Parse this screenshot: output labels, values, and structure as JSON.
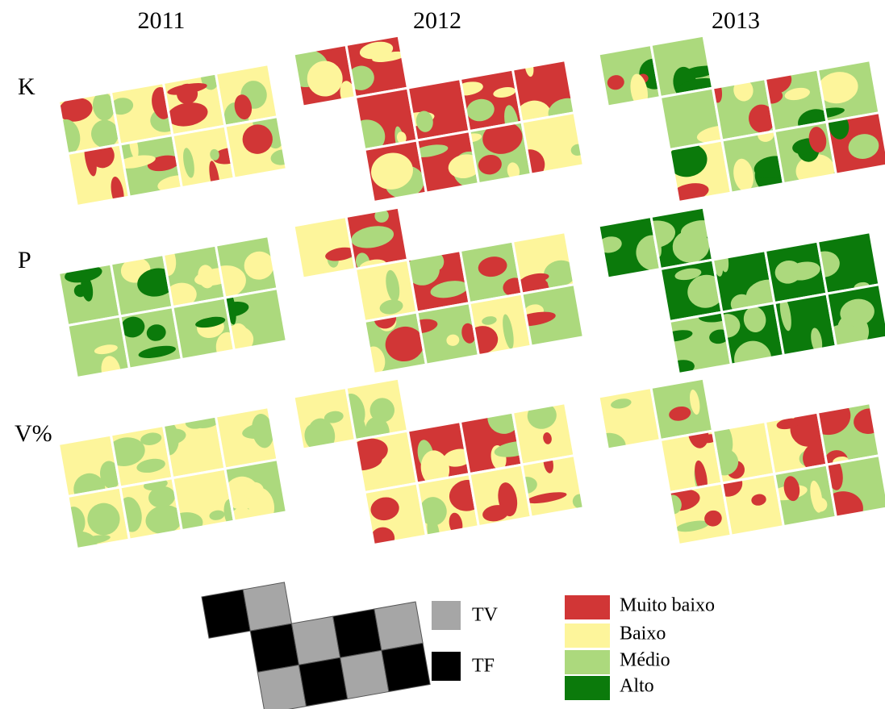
{
  "columns": [
    "2011",
    "2012",
    "2013"
  ],
  "rows": [
    "K",
    "P",
    "V%"
  ],
  "treatments": [
    {
      "label": "TV",
      "color": "#a6a6a6"
    },
    {
      "label": "TF",
      "color": "#000000"
    }
  ],
  "classes": [
    {
      "label": "Muito baixo",
      "color": "#d13636"
    },
    {
      "label": "Baixo",
      "color": "#fdf59b"
    },
    {
      "label": "Médio",
      "color": "#acd97d"
    },
    {
      "label": "Alto",
      "color": "#0b7a0b"
    }
  ]
}
